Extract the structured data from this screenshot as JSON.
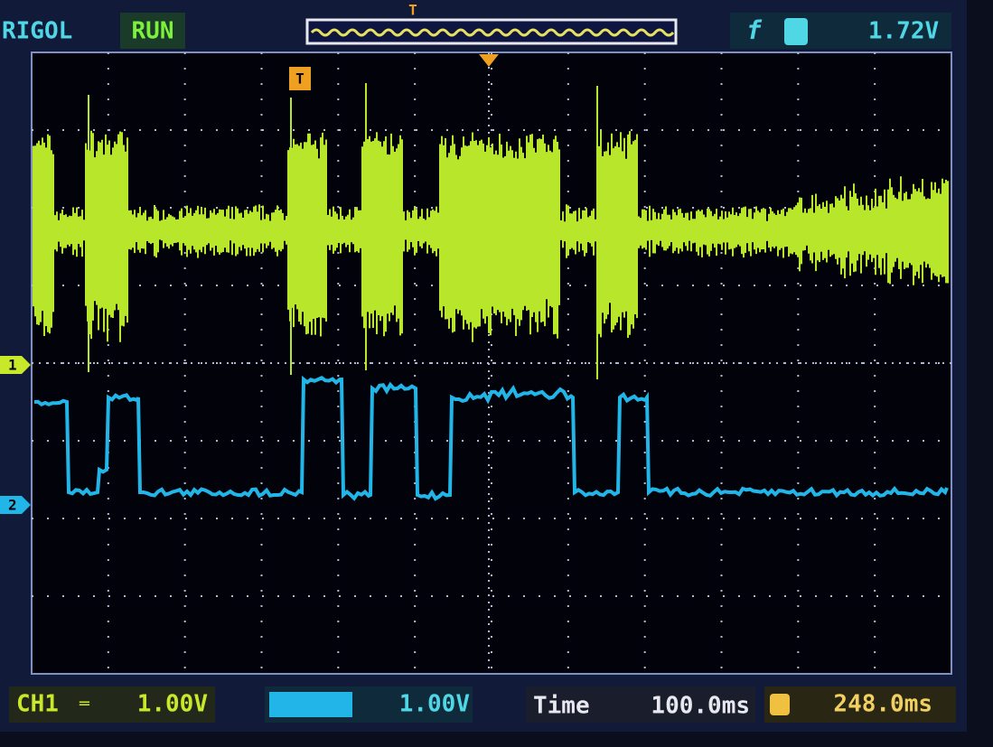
{
  "header": {
    "brand": "RIGOL",
    "status": "RUN",
    "trigger_marker": "T",
    "trigger_level": "1.72V"
  },
  "markers": {
    "ch1": "1",
    "ch2": "2",
    "trigger": "T"
  },
  "footer": {
    "ch1": {
      "label": "CH1",
      "scale": "1.00V"
    },
    "ch2": {
      "scale": "1.00V"
    },
    "time": {
      "label": "Time",
      "scale": "100.0ms"
    },
    "trigger_offset": "248.0ms"
  }
}
